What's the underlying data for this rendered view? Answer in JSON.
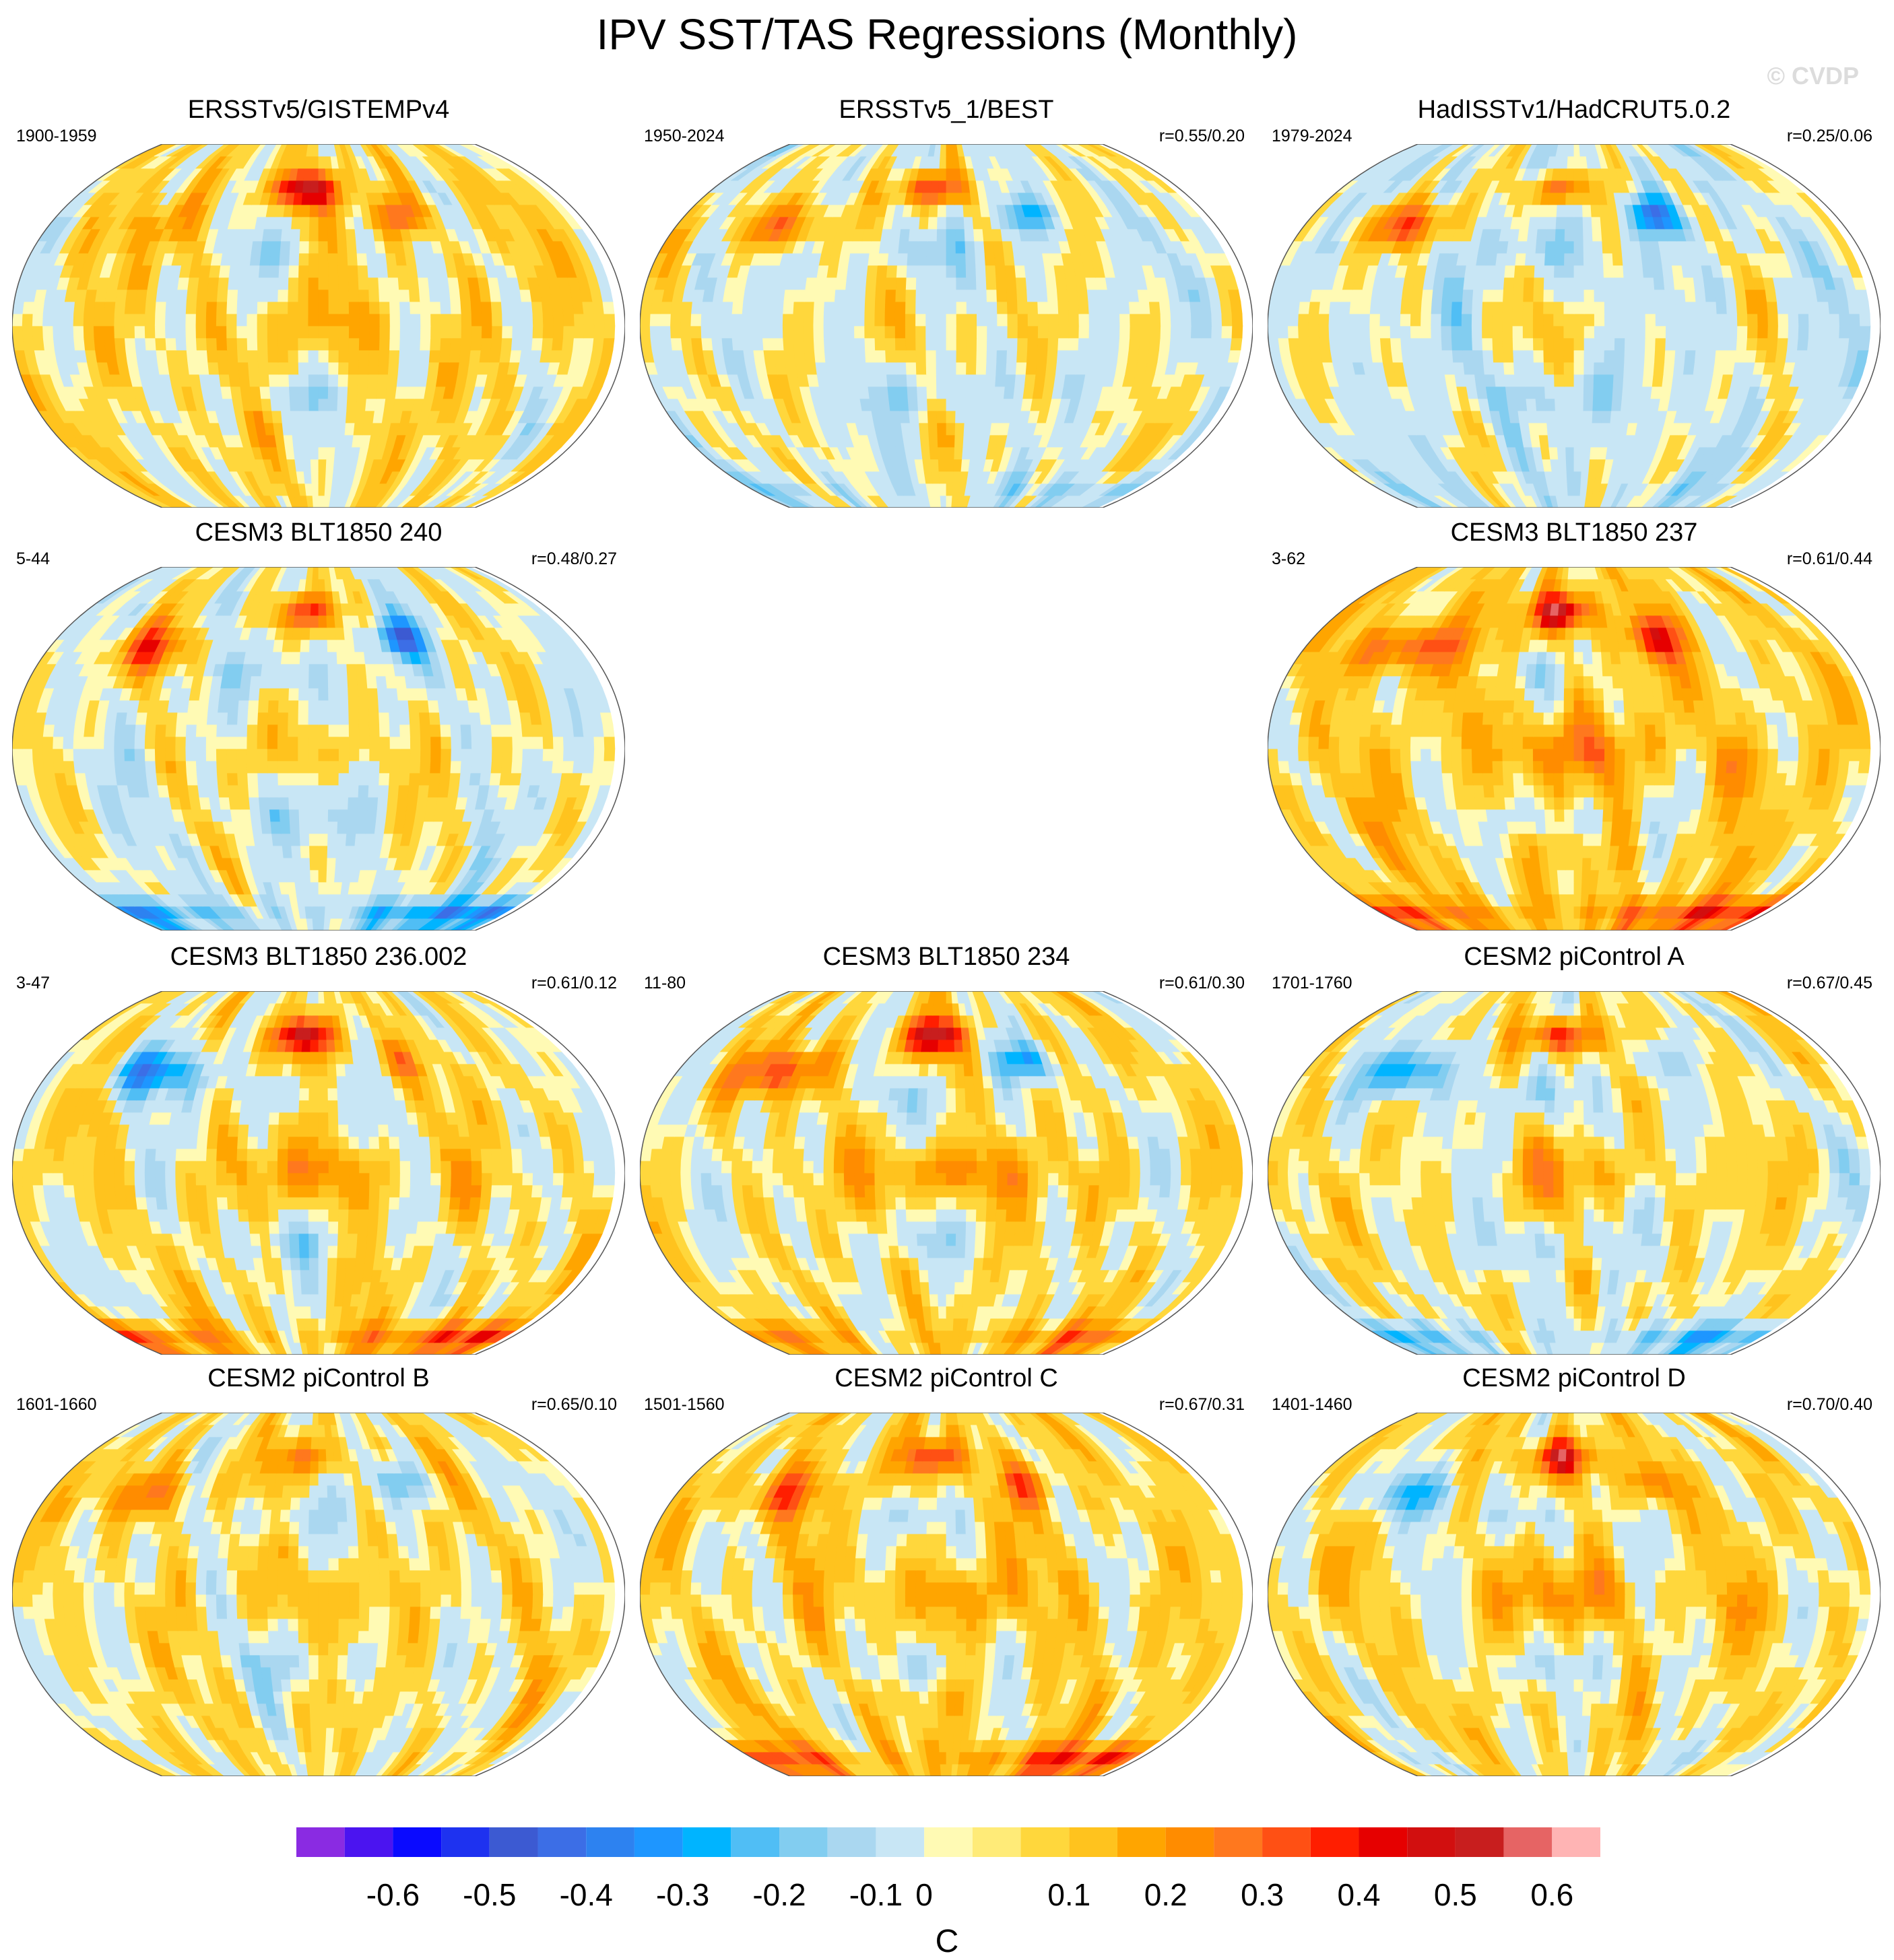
{
  "title": "IPV SST/TAS Regressions (Monthly)",
  "watermark": "© CVDP",
  "panels": [
    {
      "title": "ERSSTv5/GISTEMPv4",
      "period": "1900-1959",
      "r": "",
      "seed": 11,
      "bias": 0.04,
      "arctic": 0.45,
      "antarctic": 0.0,
      "namerica": 0.25,
      "asia": 0.1,
      "enso": 0.08
    },
    {
      "title": "ERSSTv5_1/BEST",
      "period": "1950-2024",
      "r": "r=0.55/0.20",
      "seed": 23,
      "bias": 0.0,
      "arctic": 0.35,
      "antarctic": -0.12,
      "namerica": -0.25,
      "asia": 0.25,
      "enso": 0.06
    },
    {
      "title": "HadISSTv1/HadCRUT5.0.2",
      "period": "1979-2024",
      "r": "r=0.25/0.06",
      "seed": 37,
      "bias": -0.02,
      "arctic": 0.3,
      "antarctic": -0.05,
      "namerica": -0.35,
      "asia": 0.3,
      "enso": 0.05
    },
    {
      "title": "CESM3 BLT1850 240",
      "period": "5-44",
      "r": "r=0.48/0.27",
      "seed": 41,
      "bias": 0.0,
      "arctic": 0.3,
      "antarctic": -0.35,
      "namerica": -0.35,
      "asia": 0.25,
      "enso": 0.1
    },
    {
      "title": "CESM3 BLT1850 237",
      "period": "3-62",
      "r": "r=0.61/0.44",
      "seed": 53,
      "bias": 0.06,
      "arctic": 0.45,
      "antarctic": 0.3,
      "namerica": 0.3,
      "asia": 0.3,
      "enso": 0.16
    },
    {
      "title": "CESM3 BLT1850 236.002",
      "period": "3-47",
      "r": "r=0.61/0.12",
      "seed": 67,
      "bias": 0.03,
      "arctic": 0.45,
      "antarctic": 0.3,
      "namerica": 0.15,
      "asia": -0.35,
      "enso": 0.16
    },
    {
      "title": "CESM3 BLT1850 234",
      "period": "11-80",
      "r": "r=0.61/0.30",
      "seed": 71,
      "bias": 0.03,
      "arctic": 0.45,
      "antarctic": 0.2,
      "namerica": -0.3,
      "asia": 0.3,
      "enso": 0.2
    },
    {
      "title": "CESM2 piControl A",
      "period": "1701-1760",
      "r": "r=0.67/0.45",
      "seed": 83,
      "bias": 0.02,
      "arctic": 0.4,
      "antarctic": -0.25,
      "namerica": -0.15,
      "asia": -0.3,
      "enso": 0.12
    },
    {
      "title": "CESM2 piControl B",
      "period": "1601-1660",
      "r": "r=0.65/0.10",
      "seed": 97,
      "bias": 0.03,
      "arctic": 0.2,
      "antarctic": 0.0,
      "namerica": -0.2,
      "asia": 0.2,
      "enso": 0.08
    },
    {
      "title": "CESM2 piControl C",
      "period": "1501-1560",
      "r": "r=0.67/0.31",
      "seed": 101,
      "bias": 0.05,
      "arctic": 0.3,
      "antarctic": 0.3,
      "namerica": 0.2,
      "asia": 0.2,
      "enso": 0.12
    },
    {
      "title": "CESM2 piControl D",
      "period": "1401-1460",
      "r": "r=0.70/0.40",
      "seed": 113,
      "bias": 0.04,
      "arctic": 0.4,
      "antarctic": -0.05,
      "namerica": 0.2,
      "asia": -0.25,
      "enso": 0.14
    }
  ],
  "colorbar": {
    "colors": [
      "#8a2be2",
      "#4b14f0",
      "#0a0aff",
      "#1e32f0",
      "#3c5ad2",
      "#3c6ee6",
      "#2d82f0",
      "#1e96ff",
      "#00b4ff",
      "#50bef5",
      "#82cdf0",
      "#aad7f0",
      "#c8e6f5",
      "#fffab4",
      "#ffeb78",
      "#ffd73c",
      "#ffc31e",
      "#ffa500",
      "#ff8c00",
      "#ff781e",
      "#ff5014",
      "#ff1e00",
      "#e60000",
      "#d20f0f",
      "#c81e1e",
      "#e66464",
      "#ffb4b4"
    ],
    "labels": [
      "-0.6",
      "-0.5",
      "-0.4",
      "-0.3",
      "-0.2",
      "-0.1",
      "0",
      "0.1",
      "0.2",
      "0.3",
      "0.4",
      "0.5",
      "0.6"
    ],
    "unit": "C"
  }
}
